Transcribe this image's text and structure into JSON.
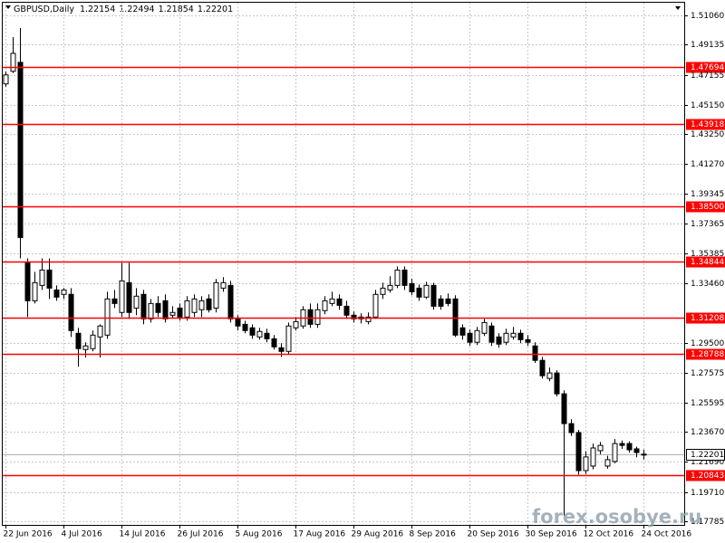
{
  "chart_data": {
    "type": "candlestick",
    "title": "GBPUSD,Daily",
    "watermark": "forex.osobye.ru",
    "categories": [
      "22 Jun 2016",
      null,
      null,
      null,
      null,
      null,
      null,
      null,
      "4 Jul 2016",
      null,
      null,
      null,
      null,
      null,
      null,
      null,
      "14 Jul 2016",
      null,
      null,
      null,
      null,
      null,
      null,
      null,
      "26 Jul 2016",
      null,
      null,
      null,
      null,
      null,
      null,
      null,
      "5 Aug 2016",
      null,
      null,
      null,
      null,
      null,
      null,
      null,
      "17 Aug 2016",
      null,
      null,
      null,
      null,
      null,
      null,
      null,
      "29 Aug 2016",
      null,
      null,
      null,
      null,
      null,
      null,
      null,
      "8 Sep 2016",
      null,
      null,
      null,
      null,
      null,
      null,
      null,
      "20 Sep 2016",
      null,
      null,
      null,
      null,
      null,
      null,
      null,
      "30 Sep 2016",
      null,
      null,
      null,
      null,
      null,
      null,
      null,
      "12 Oct 2016",
      null,
      null,
      null,
      null,
      null,
      null,
      null,
      "24 Oct 2016"
    ],
    "open": [
      1.4655,
      1.4738,
      1.4797,
      1.3479,
      1.3229,
      1.333,
      1.3431,
      1.33,
      1.3271,
      1.3271,
      1.3015,
      1.2908,
      1.2914,
      1.2991,
      1.3003,
      1.3241,
      1.3152,
      1.3348,
      1.3181,
      1.3271,
      1.311,
      1.3211,
      1.3229,
      1.3134,
      1.3181,
      1.3122,
      1.3152,
      1.317,
      1.3241,
      1.3181,
      1.3312,
      1.333,
      1.311,
      1.3074,
      1.3051,
      1.2991,
      1.3015,
      1.2979,
      1.292,
      1.2896,
      1.3051,
      1.3063,
      1.317,
      1.3074,
      1.3164,
      1.3211,
      1.3241,
      1.3193,
      1.3134,
      1.3122,
      1.3092,
      1.3122,
      1.3271,
      1.33,
      1.333,
      1.3431,
      1.3342,
      1.3312,
      1.3253,
      1.333,
      1.3241,
      1.3241,
      1.3241,
      1.3051,
      1.3015,
      1.2956,
      1.3015,
      1.3063,
      1.2991,
      1.2956,
      1.2991,
      1.3015,
      1.2973,
      1.2932,
      1.2837,
      1.2718,
      1.2754,
      1.2617,
      1.2421,
      1.2362,
      1.2112,
      1.2142,
      1.2243,
      1.2142,
      1.2172,
      1.229,
      1.229,
      1.2255,
      1.22154
    ],
    "high": [
      1.4738,
      1.4963,
      1.5023,
      1.3508,
      1.3419,
      1.3508,
      1.3508,
      1.333,
      1.3312,
      1.3312,
      1.3051,
      1.2956,
      1.3033,
      1.3074,
      1.3288,
      1.33,
      1.3479,
      1.3479,
      1.3312,
      1.33,
      1.3241,
      1.3259,
      1.3271,
      1.3193,
      1.3211,
      1.3259,
      1.3271,
      1.3259,
      1.3271,
      1.3372,
      1.3384,
      1.336,
      1.3134,
      1.3098,
      1.3074,
      1.3051,
      1.3045,
      1.3003,
      1.295,
      1.3086,
      1.3122,
      1.3193,
      1.3211,
      1.3211,
      1.3259,
      1.3288,
      1.3271,
      1.3229,
      1.3158,
      1.3146,
      1.3152,
      1.33,
      1.3348,
      1.339,
      1.3455,
      1.3455,
      1.3372,
      1.3336,
      1.3354,
      1.3348,
      1.3265,
      1.3277,
      1.3265,
      1.3074,
      1.3039,
      1.3057,
      1.311,
      1.3086,
      1.3015,
      1.3045,
      1.3057,
      1.3039,
      1.3003,
      1.2956,
      1.286,
      1.279,
      1.2772,
      1.264,
      1.245,
      1.238,
      1.224,
      1.229,
      1.23,
      1.221,
      1.232,
      1.231,
      1.2305,
      1.227,
      1.22494
    ],
    "low": [
      1.4637,
      1.4726,
      1.3508,
      1.3122,
      1.3211,
      1.33,
      1.3241,
      1.3229,
      1.3241,
      1.2991,
      1.2795,
      1.2855,
      1.2896,
      1.2855,
      1.2979,
      1.3181,
      1.3122,
      1.311,
      1.3134,
      1.3074,
      1.3086,
      1.3122,
      1.3086,
      1.311,
      1.3098,
      1.3098,
      1.3122,
      1.3122,
      1.3152,
      1.3152,
      1.3288,
      1.3086,
      1.3033,
      1.3015,
      1.2979,
      1.2973,
      1.2956,
      1.2908,
      1.286,
      1.2878,
      1.3033,
      1.3045,
      1.3051,
      1.3051,
      1.314,
      1.3193,
      1.317,
      1.311,
      1.3086,
      1.308,
      1.3074,
      1.311,
      1.3241,
      1.3282,
      1.3312,
      1.33,
      1.3265,
      1.3229,
      1.3241,
      1.317,
      1.317,
      1.3193,
      1.2991,
      1.2973,
      1.2932,
      1.2938,
      1.2997,
      1.2932,
      1.292,
      1.2938,
      1.2973,
      1.295,
      1.2932,
      1.282,
      1.2718,
      1.27,
      1.26,
      1.1815,
      1.234,
      1.2085,
      1.209,
      1.212,
      1.222,
      1.2125,
      1.216,
      1.2255,
      1.223,
      1.22,
      1.21854
    ],
    "close": [
      1.4714,
      1.4856,
      1.3645,
      1.3229,
      1.3348,
      1.3431,
      1.3312,
      1.3253,
      1.33,
      1.3033,
      1.2914,
      1.2932,
      1.3003,
      1.3063,
      1.3241,
      1.3211,
      1.336,
      1.3152,
      1.3259,
      1.311,
      1.3211,
      1.3152,
      1.311,
      1.3152,
      1.3122,
      1.3229,
      1.3241,
      1.3229,
      1.317,
      1.3348,
      1.3348,
      1.311,
      1.3063,
      1.3033,
      1.3003,
      1.3027,
      1.2979,
      1.2926,
      1.2896,
      1.3063,
      1.3092,
      1.317,
      1.3074,
      1.317,
      1.3229,
      1.3241,
      1.3199,
      1.3134,
      1.311,
      1.311,
      1.3122,
      1.3271,
      1.3312,
      1.333,
      1.3431,
      1.333,
      1.3288,
      1.3253,
      1.333,
      1.3193,
      1.3193,
      1.3211,
      1.3003,
      1.3003,
      1.2956,
      1.3033,
      1.3086,
      1.2956,
      1.2944,
      1.3015,
      1.3015,
      1.2973,
      1.2956,
      1.2837,
      1.2736,
      1.2754,
      1.2617,
      1.2421,
      1.2362,
      1.2112,
      1.2202,
      1.2261,
      1.2278,
      1.2184,
      1.229,
      1.2278,
      1.2249,
      1.2231,
      1.22201
    ],
    "up_color": "#ffffff",
    "down_color": "#000000",
    "level_color": "#ff0000",
    "levels": [
      1.47694,
      1.43918,
      {
        "value": 1.385,
        "label": "1.38500"
      },
      1.34844,
      1.31208,
      1.28788,
      1.20843
    ],
    "ylim": [
      1.1755,
      1.5189
    ],
    "yticks": [
      {
        "value": 1.5106,
        "label": "1.51060"
      },
      1.49135,
      1.47155,
      {
        "value": 1.4515,
        "label": "1.45150"
      },
      {
        "value": 1.4325,
        "label": "1.43250"
      },
      {
        "value": 1.4127,
        "label": "1.41270"
      },
      1.39345,
      1.37365,
      1.35385,
      {
        "value": 1.3346,
        "label": "1.33460"
      },
      {
        "value": 1.295,
        "label": "1.29500"
      },
      1.27575,
      1.25595,
      {
        "value": 1.2367,
        "label": "1.23670"
      },
      {
        "value": 1.2169,
        "label": "1.21690"
      },
      {
        "value": 1.1971,
        "label": "1.19710"
      },
      1.17785
    ],
    "grid": true
  }
}
